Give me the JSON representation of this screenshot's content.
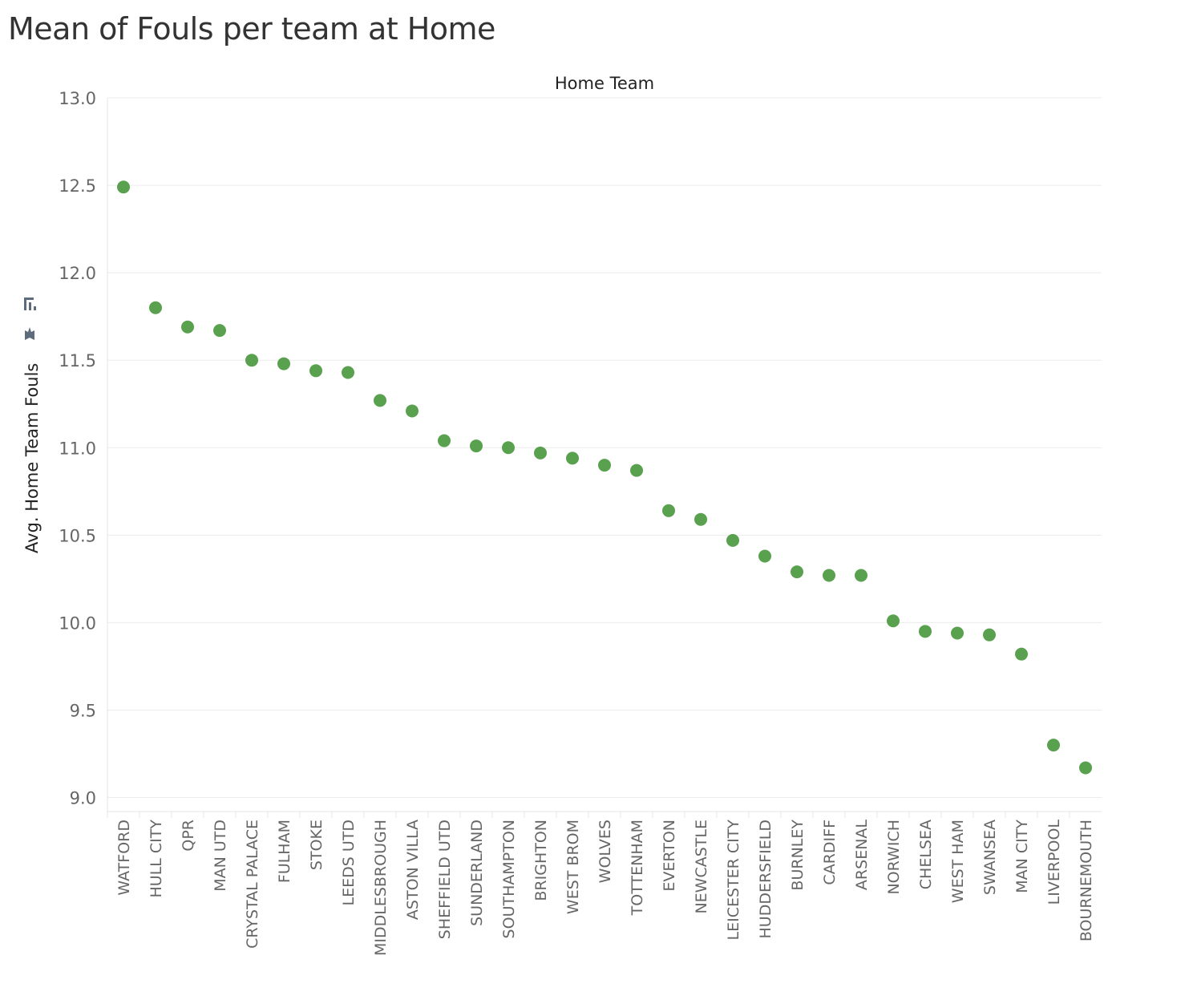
{
  "title": "Mean of Fouls per team at Home",
  "chart_data": {
    "type": "scatter",
    "title": "Mean of Fouls per team at Home",
    "column_header": "Home Team",
    "xlabel": "",
    "ylabel": "Avg. Home Team Fouls",
    "ylim": [
      8.92,
      13.0
    ],
    "yticks": [
      "13.0",
      "12.5",
      "12.0",
      "11.5",
      "11.0",
      "10.5",
      "10.0",
      "9.5",
      "9.0"
    ],
    "grid": true,
    "marker_color": "#59A14F",
    "categories": [
      "WATFORD",
      "HULL CITY",
      "QPR",
      "MAN UTD",
      "CRYSTAL PALACE",
      "FULHAM",
      "STOKE",
      "LEEDS UTD",
      "MIDDLESBROUGH",
      "ASTON VILLA",
      "SHEFFIELD UTD",
      "SUNDERLAND",
      "SOUTHAMPTON",
      "BRIGHTON",
      "WEST BROM",
      "WOLVES",
      "TOTTENHAM",
      "EVERTON",
      "NEWCASTLE",
      "LEICESTER CITY",
      "HUDDERSFIELD",
      "BURNLEY",
      "CARDIFF",
      "ARSENAL",
      "NORWICH",
      "CHELSEA",
      "WEST HAM",
      "SWANSEA",
      "MAN CITY",
      "LIVERPOOL",
      "BOURNEMOUTH"
    ],
    "values": [
      12.49,
      11.8,
      11.69,
      11.67,
      11.5,
      11.48,
      11.44,
      11.43,
      11.27,
      11.21,
      11.04,
      11.01,
      11.0,
      10.97,
      10.94,
      10.9,
      10.87,
      10.64,
      10.59,
      10.47,
      10.38,
      10.29,
      10.27,
      10.27,
      10.01,
      9.95,
      9.94,
      9.93,
      9.82,
      9.3,
      9.17
    ]
  }
}
